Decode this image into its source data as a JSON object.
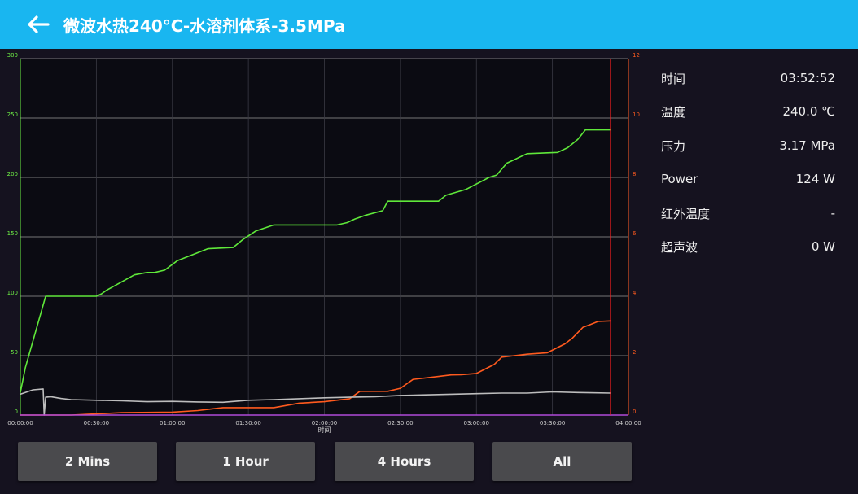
{
  "header": {
    "title": "微波水热240°C-水溶剂体系-3.5MPa"
  },
  "stats": [
    {
      "label": "时间",
      "value": "03:52:52"
    },
    {
      "label": "温度",
      "value": "240.0 ℃"
    },
    {
      "label": "压力",
      "value": "3.17 MPa"
    },
    {
      "label": "Power",
      "value": "124 W"
    },
    {
      "label": "红外温度",
      "value": "-"
    },
    {
      "label": "超声波",
      "value": "0 W"
    }
  ],
  "range_buttons": [
    "2 Mins",
    "1 Hour",
    "4 Hours",
    "All"
  ],
  "chart_data": {
    "type": "line",
    "xlabel": "时间",
    "x_ticks": [
      "00:00:00",
      "00:30:00",
      "01:00:00",
      "01:30:00",
      "02:00:00",
      "02:30:00",
      "03:00:00",
      "03:30:00",
      "04:00:00"
    ],
    "x_range_minutes": [
      0,
      240
    ],
    "y_left_range": [
      0,
      300
    ],
    "y_left_ticks": [
      "0",
      "50",
      "100",
      "150",
      "200",
      "250",
      "300"
    ],
    "y_right_range": [
      0,
      12
    ],
    "y_right_ticks": [
      "0",
      "2",
      "4",
      "6",
      "8",
      "10",
      "12"
    ],
    "cursor_x_minutes": 233,
    "grid": true,
    "colors": {
      "temperature": "#5fe83a",
      "pressure": "#ff5a1e",
      "power": "#bdbdbd",
      "ultrasonic": "#b04ad8",
      "cursor": "#ff2020",
      "left_axis": "#6ef046",
      "right_axis": "#ff5a1e",
      "grid": "#9a9a9a"
    },
    "series": [
      {
        "key": "temperature",
        "axis": "left",
        "x": [
          0,
          2,
          10,
          20,
          24,
          30,
          32,
          34,
          45,
          50,
          53,
          57,
          62,
          74,
          84,
          88,
          93,
          100,
          104,
          115,
          125,
          129,
          132,
          136,
          143,
          145,
          165,
          168,
          176,
          185,
          188,
          192,
          200,
          212,
          216,
          220,
          223,
          233
        ],
        "y": [
          19,
          40,
          100,
          100,
          100,
          100,
          102,
          105,
          118,
          120,
          120,
          122,
          130,
          140,
          141,
          148,
          155,
          160,
          160,
          160,
          160,
          162,
          165,
          168,
          172,
          180,
          180,
          185,
          190,
          200,
          202,
          212,
          220,
          221,
          225,
          232,
          240,
          240
        ]
      },
      {
        "key": "pressure",
        "axis": "right",
        "x": [
          0,
          20,
          40,
          60,
          70,
          75,
          80,
          100,
          110,
          120,
          130,
          134,
          145,
          150,
          155,
          165,
          170,
          174,
          180,
          187,
          190,
          195,
          200,
          208,
          215,
          218,
          222,
          225,
          228,
          233
        ],
        "y": [
          0,
          0,
          0.08,
          0.1,
          0.15,
          0.2,
          0.25,
          0.25,
          0.4,
          0.45,
          0.55,
          0.8,
          0.8,
          0.9,
          1.2,
          1.3,
          1.35,
          1.36,
          1.4,
          1.7,
          1.95,
          2.0,
          2.05,
          2.1,
          2.4,
          2.6,
          2.95,
          3.05,
          3.15,
          3.17
        ]
      },
      {
        "key": "power",
        "axis": "right",
        "x": [
          0,
          5,
          9,
          9.4,
          10,
          12,
          16,
          20,
          30,
          40,
          50,
          60,
          70,
          80,
          90,
          100,
          110,
          120,
          130,
          140,
          150,
          160,
          170,
          180,
          190,
          200,
          210,
          220,
          225,
          233
        ],
        "y": [
          0.7,
          0.85,
          0.88,
          0.0,
          0.6,
          0.62,
          0.56,
          0.52,
          0.5,
          0.48,
          0.45,
          0.46,
          0.44,
          0.43,
          0.5,
          0.52,
          0.55,
          0.58,
          0.6,
          0.62,
          0.66,
          0.68,
          0.7,
          0.72,
          0.74,
          0.74,
          0.78,
          0.76,
          0.75,
          0.74
        ]
      },
      {
        "key": "ultrasonic",
        "axis": "right",
        "x": [
          0,
          240
        ],
        "y": [
          0,
          0
        ]
      }
    ]
  }
}
